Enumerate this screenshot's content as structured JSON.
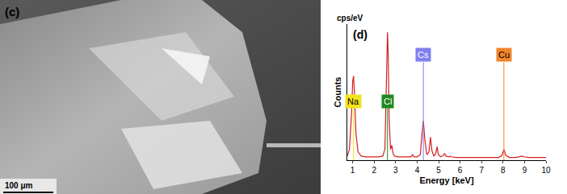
{
  "image_panel": {
    "label": "(c)",
    "scale_bar": "100 μm"
  },
  "chart_data": {
    "type": "line",
    "panel_label": "(d)",
    "y_unit_label": "cps/eV",
    "x_label": "Energy [keV]",
    "y_label": "Counts",
    "xlim": [
      0.75,
      10
    ],
    "xticks": [
      1,
      2,
      3,
      4,
      5,
      6,
      7,
      8,
      9,
      10
    ],
    "ylim": [
      0,
      100
    ],
    "yticks": [],
    "tick_labels": "x",
    "grid": false,
    "series": [
      {
        "color": "#d42020",
        "x": [
          0.75,
          0.85,
          0.95,
          1.0,
          1.04,
          1.08,
          1.15,
          1.25,
          1.4,
          1.6,
          1.8,
          2.0,
          2.2,
          2.4,
          2.5,
          2.56,
          2.6,
          2.62,
          2.65,
          2.7,
          2.76,
          2.82,
          2.88,
          2.95,
          3.1,
          3.3,
          3.5,
          3.7,
          3.79,
          3.85,
          4.0,
          4.15,
          4.22,
          4.29,
          4.36,
          4.45,
          4.55,
          4.62,
          4.69,
          4.78,
          4.87,
          4.93,
          4.99,
          5.1,
          5.22,
          5.28,
          5.34,
          5.48,
          5.54,
          5.6,
          5.8,
          6.2,
          6.6,
          7.0,
          7.4,
          7.8,
          7.95,
          8.04,
          8.13,
          8.3,
          8.6,
          8.85,
          8.9,
          8.95,
          9.2,
          9.6,
          10.0
        ],
        "values": [
          3,
          8,
          35,
          58,
          62,
          50,
          20,
          6,
          3,
          2.5,
          2.5,
          2.5,
          2.5,
          3,
          8,
          50,
          90,
          94,
          80,
          30,
          8,
          11,
          5,
          3,
          2.5,
          2.5,
          2.5,
          2.5,
          4,
          2.5,
          2.5,
          4,
          18,
          29,
          15,
          4,
          6,
          17,
          7,
          3,
          5,
          10,
          4,
          2.5,
          3.5,
          5,
          3,
          2.5,
          3,
          2.5,
          2,
          2,
          2,
          2,
          2,
          2,
          3.5,
          8,
          3.5,
          2,
          2,
          2.5,
          3,
          2.5,
          2,
          2,
          2
        ]
      }
    ],
    "element_markers": [
      {
        "label": "Na",
        "energy": 1.04,
        "color": "#f2e41c"
      },
      {
        "label": "Cl",
        "energy": 2.62,
        "color": "#1e8a1e"
      },
      {
        "label": "Cs",
        "energy": 4.29,
        "color": "#7f7ff0"
      },
      {
        "label": "Cu",
        "energy": 8.04,
        "color": "#f0862a"
      }
    ]
  }
}
